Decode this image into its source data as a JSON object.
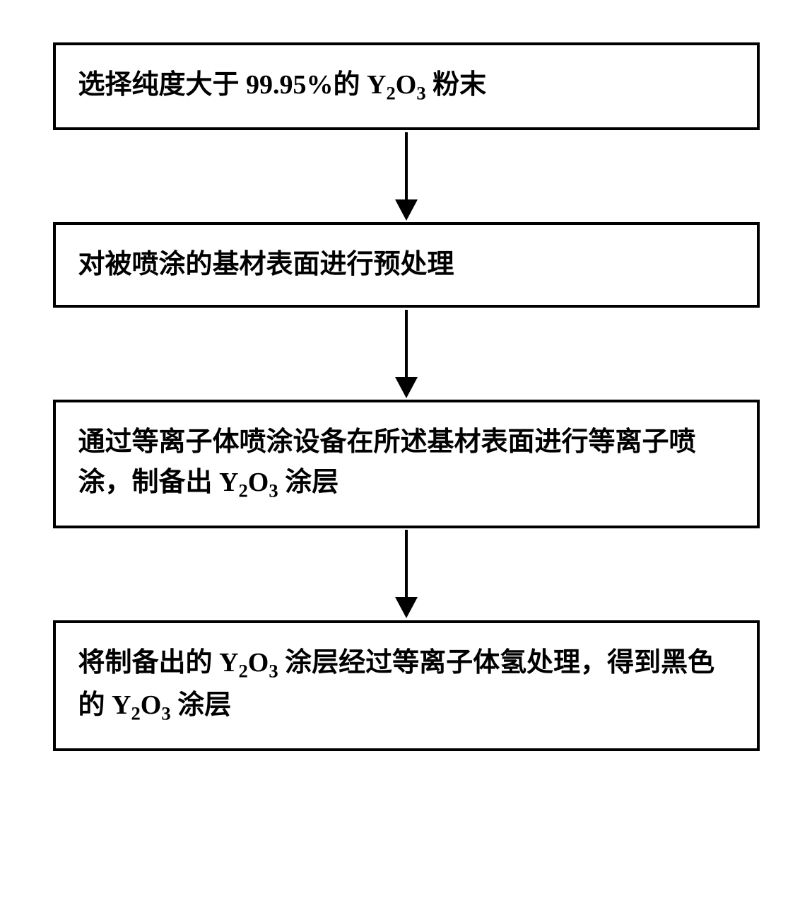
{
  "flowchart": {
    "type": "flowchart",
    "direction": "vertical",
    "box_border_color": "#000000",
    "box_border_width": 4,
    "box_background_color": "#ffffff",
    "text_color": "#000000",
    "font_size": 38,
    "font_weight": "bold",
    "font_family": "SimSun",
    "arrow_color": "#000000",
    "arrow_line_width": 4,
    "arrow_head_size": 16,
    "steps": [
      {
        "text_html": "选择纯度大于 99.95%的 Y<sub>2</sub>O<sub>3</sub> 粉末",
        "lines": 1
      },
      {
        "text_html": "对被喷涂的基材表面进行预处理",
        "lines": 1
      },
      {
        "text_html": "通过等离子体喷涂设备在所述基材表面进行等离子喷涂，制备出 Y<sub>2</sub>O<sub>3</sub> 涂层",
        "lines": 2
      },
      {
        "text_html": "将制备出的 Y<sub>2</sub>O<sub>3</sub> 涂层经过等离子体氢处理，得到黑色的 Y<sub>2</sub>O<sub>3</sub> 涂层",
        "lines": 2
      }
    ]
  }
}
